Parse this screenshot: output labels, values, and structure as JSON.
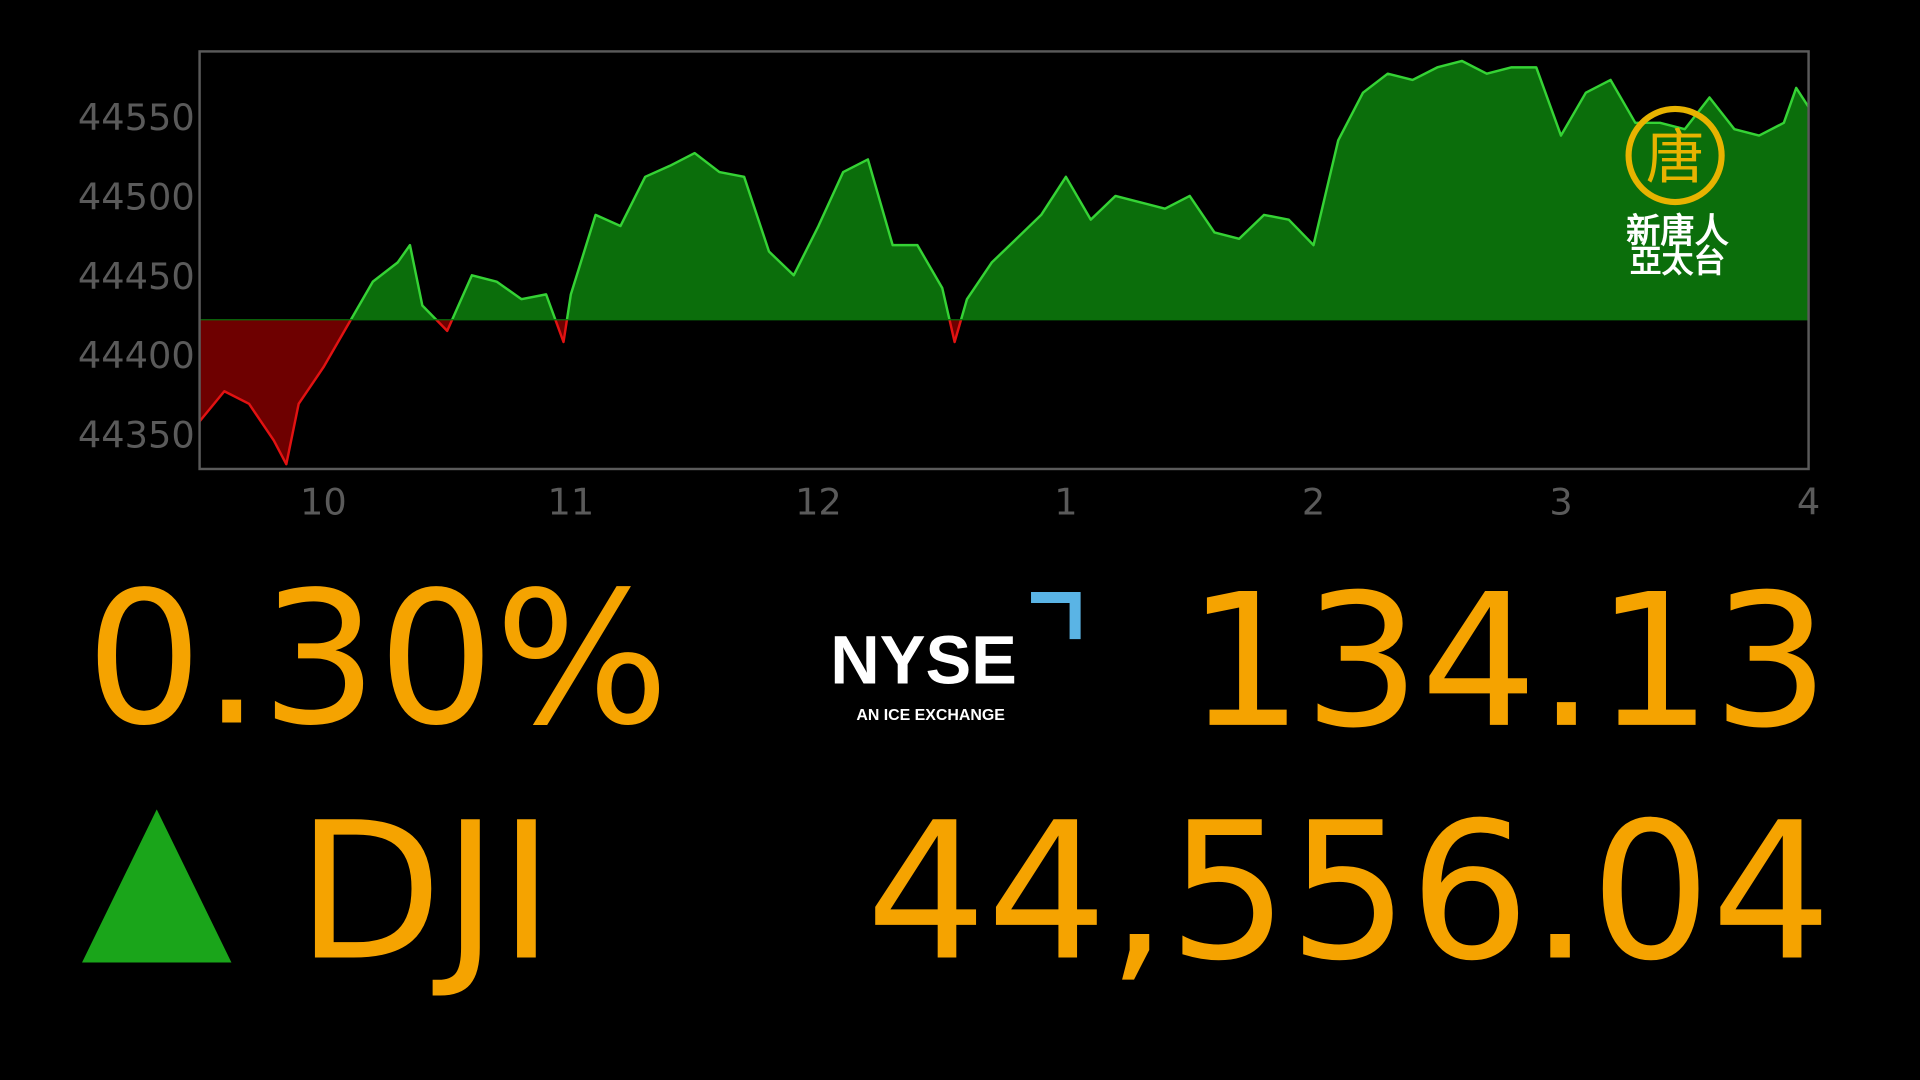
{
  "chart_data": {
    "type": "area",
    "x": [
      9.5,
      9.6,
      9.7,
      9.8,
      9.85,
      9.9,
      10.0,
      10.1,
      10.2,
      10.3,
      10.35,
      10.4,
      10.5,
      10.6,
      10.7,
      10.8,
      10.9,
      10.97,
      11.0,
      11.1,
      11.2,
      11.3,
      11.4,
      11.5,
      11.6,
      11.7,
      11.8,
      11.9,
      12.0,
      12.1,
      12.2,
      12.3,
      12.4,
      12.5,
      12.55,
      12.6,
      12.7,
      12.8,
      12.9,
      13.0,
      13.1,
      13.2,
      13.3,
      13.4,
      13.5,
      13.6,
      13.7,
      13.8,
      13.9,
      14.0,
      14.1,
      14.2,
      14.3,
      14.4,
      14.5,
      14.6,
      14.7,
      14.8,
      14.9,
      15.0,
      15.1,
      15.2,
      15.3,
      15.4,
      15.5,
      15.6,
      15.7,
      15.8,
      15.9,
      15.95,
      16.0
    ],
    "values": [
      44358,
      44377,
      44369,
      44346,
      44331,
      44369,
      44392,
      44419,
      44446,
      44458,
      44469,
      44431,
      44415,
      44450,
      44446,
      44435,
      44438,
      44408,
      44438,
      44488,
      44481,
      44512,
      44519,
      44527,
      44515,
      44512,
      44465,
      44450,
      44481,
      44515,
      44523,
      44469,
      44469,
      44442,
      44408,
      44435,
      44458,
      44473,
      44488,
      44512,
      44485,
      44500,
      44496,
      44492,
      44500,
      44477,
      44473,
      44488,
      44485,
      44469,
      44535,
      44565,
      44577,
      44573,
      44581,
      44585,
      44577,
      44581,
      44581,
      44538,
      44565,
      44573,
      44546,
      44546,
      44542,
      44562,
      44542,
      44538,
      44546,
      44568,
      44556
    ],
    "baseline": 44422,
    "up_color": "#0b6e0b",
    "up_line_color": "#35d335",
    "down_color": "#6e0000",
    "down_line_color": "#e21212",
    "xlim": [
      9.5,
      16
    ],
    "ylim": [
      44328,
      44591
    ],
    "xticks": [
      10,
      11,
      12,
      {
        "value": 13,
        "label": "1"
      },
      {
        "value": 14,
        "label": "2"
      },
      {
        "value": 15,
        "label": "3"
      },
      {
        "value": 16,
        "label": "4"
      }
    ],
    "yticks": [
      44350,
      44400,
      44450,
      44500,
      44550
    ]
  },
  "quote": {
    "change_percent": "0.30%",
    "change_points": "134.13",
    "symbol": "DJI",
    "close": "44,556.04"
  },
  "exchange_logo": {
    "name": "NYSE",
    "tagline": "AN ICE EXCHANGE"
  },
  "channel_logo": {
    "emblem": "唐",
    "name": "新唐人",
    "region": "亞太台"
  }
}
